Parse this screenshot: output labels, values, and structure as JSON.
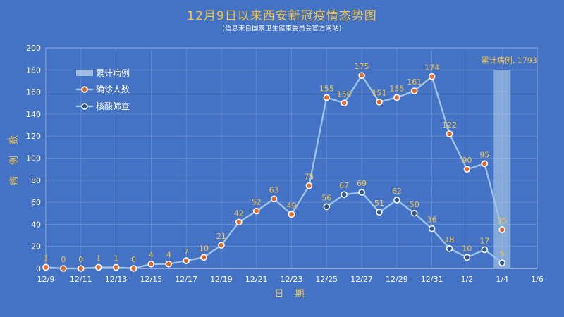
{
  "header": {
    "title": "12月9日以来西安新冠疫情态势图",
    "subtitle": "(信息来自国家卫生健康委员会官方网站)"
  },
  "colors": {
    "background": "#4472c4",
    "line": "#9dc3e6",
    "marker_fill_confirmed": "#e06b2c",
    "marker_fill_screening": "#2f5597",
    "label": "#f4c445",
    "cumulative_bar": "#bdd7ee"
  },
  "chart_data": {
    "type": "line",
    "title": "12月9日以来西安新冠疫情态势图",
    "subtitle": "(信息来自国家卫生健康委员会官方网站)",
    "xlabel": "日 期",
    "ylabel": "病 例 数",
    "ylim": [
      0,
      200
    ],
    "yticks": [
      0,
      20,
      40,
      60,
      80,
      100,
      120,
      140,
      160,
      180,
      200
    ],
    "xticks": [
      "12/9",
      "12/11",
      "12/13",
      "12/15",
      "12/17",
      "12/19",
      "12/21",
      "12/23",
      "12/25",
      "12/27",
      "12/29",
      "12/31",
      "1/2",
      "1/4",
      "1/6"
    ],
    "grid": true,
    "legend_position": "top-left",
    "categories": [
      "12/9",
      "12/10",
      "12/11",
      "12/12",
      "12/13",
      "12/14",
      "12/15",
      "12/16",
      "12/17",
      "12/18",
      "12/19",
      "12/20",
      "12/21",
      "12/22",
      "12/23",
      "12/24",
      "12/25",
      "12/26",
      "12/27",
      "12/28",
      "12/29",
      "12/30",
      "12/31",
      "1/1",
      "1/2",
      "1/3",
      "1/4"
    ],
    "series": [
      {
        "name": "确诊人数",
        "values": [
          1,
          0,
          0,
          1,
          1,
          0,
          4,
          4,
          7,
          10,
          21,
          42,
          52,
          63,
          49,
          75,
          155,
          150,
          175,
          151,
          155,
          161,
          174,
          122,
          90,
          95,
          35
        ]
      },
      {
        "name": "核酸筛查",
        "values": [
          null,
          null,
          null,
          null,
          null,
          null,
          null,
          null,
          null,
          null,
          null,
          null,
          null,
          null,
          null,
          null,
          56,
          67,
          69,
          51,
          62,
          50,
          36,
          18,
          10,
          17,
          5
        ]
      }
    ],
    "cumulative": {
      "name": "累计病例",
      "category": "1/4",
      "value": 1793,
      "label": "累计病例, 1793"
    }
  }
}
